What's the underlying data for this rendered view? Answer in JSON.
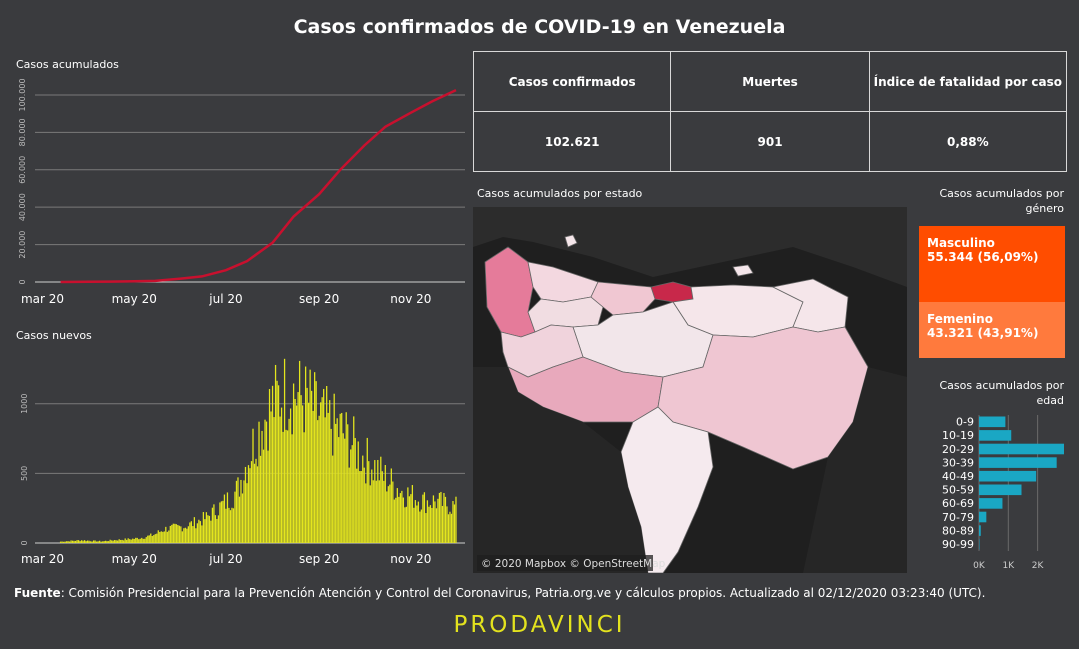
{
  "title": "Casos confirmados de COVID-19 en Venezuela",
  "footer": {
    "source_label": "Fuente",
    "text": ": Comisión Presidencial para la Prevención Atención y Control del Coronavirus, Patria.org.ve y cálculos propios. Actualizado al 02/12/2020 03:23:40 (UTC)."
  },
  "logo": "PRODAVINCI",
  "stats": {
    "headers": [
      "Casos confirmados",
      "Muertes",
      "Índice de fatalidad por caso"
    ],
    "values": [
      "102.621",
      "901",
      "0,88%"
    ]
  },
  "map": {
    "label": "Casos acumulados por estado",
    "attribution": "© 2020 Mapbox © OpenStreetMap"
  },
  "gender": {
    "label": "Casos acumulados por género",
    "items": [
      {
        "name": "Masculino",
        "value": "55.344 (56,09%)",
        "color": "#ff4d00"
      },
      {
        "name": "Femenino",
        "value": "43.321 (43,91%)",
        "color": "#ff7a3d"
      }
    ]
  },
  "chart_data": [
    {
      "type": "line",
      "label": "Casos acumulados",
      "color": "#c8102e",
      "x_ticks": [
        "mar 20",
        "may 20",
        "jul 20",
        "sep 20",
        "nov 20"
      ],
      "y_ticks": [
        "0",
        "20.000",
        "40.000",
        "60.000",
        "80.000",
        "100.000"
      ],
      "ylim": [
        0,
        108000
      ],
      "x": [
        "2020-03-13",
        "2020-04-01",
        "2020-04-15",
        "2020-05-01",
        "2020-05-15",
        "2020-06-01",
        "2020-06-15",
        "2020-07-01",
        "2020-07-15",
        "2020-08-01",
        "2020-08-15",
        "2020-09-01",
        "2020-09-15",
        "2020-10-01",
        "2020-10-15",
        "2020-11-01",
        "2020-11-15",
        "2020-12-01"
      ],
      "y": [
        0,
        100,
        200,
        400,
        600,
        1800,
        3000,
        6300,
        11200,
        21000,
        35000,
        47000,
        60000,
        73000,
        83000,
        90500,
        96500,
        102621
      ]
    },
    {
      "type": "bar",
      "label": "Casos nuevos",
      "color": "#e4e61e",
      "x_ticks": [
        "mar 20",
        "may 20",
        "jul 20",
        "sep 20",
        "nov 20"
      ],
      "y_ticks": [
        "0",
        "500",
        "1000"
      ],
      "ylim": [
        0,
        1350
      ],
      "x_start": "2020-03-13",
      "x_end": "2020-12-01",
      "weekly_avg": [
        10,
        15,
        20,
        15,
        12,
        20,
        25,
        30,
        40,
        60,
        100,
        110,
        120,
        150,
        180,
        240,
        300,
        380,
        600,
        800,
        950,
        1050,
        1100,
        1050,
        1000,
        900,
        850,
        800,
        720,
        620,
        560,
        480,
        420,
        360,
        330,
        300,
        300,
        280,
        260
      ]
    },
    {
      "type": "bar",
      "orientation": "horizontal",
      "label": "Casos acumulados por edad",
      "color": "#1aa7c4",
      "categories": [
        "0-9",
        "10-19",
        "20-29",
        "30-39",
        "40-49",
        "50-59",
        "60-69",
        "70-79",
        "80-89",
        "90-99"
      ],
      "values": [
        900,
        1100,
        2900,
        2650,
        1950,
        1450,
        800,
        250,
        60,
        15
      ],
      "x_ticks": [
        "0K",
        "1K",
        "2K"
      ],
      "xlim": [
        0,
        2900
      ]
    }
  ]
}
